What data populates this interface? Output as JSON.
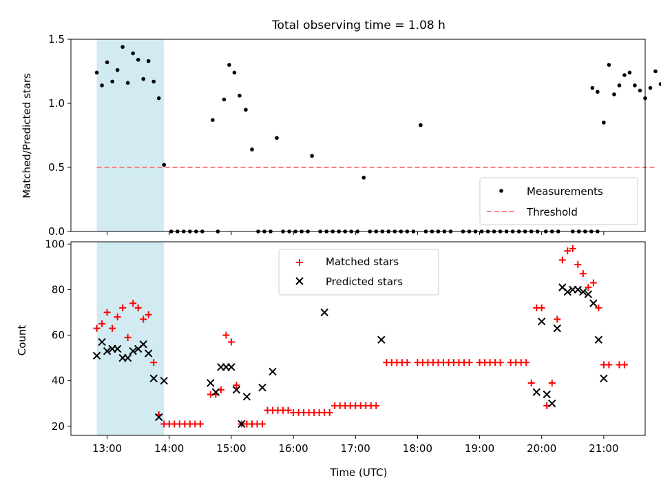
{
  "chart_data": [
    {
      "type": "scatter",
      "title": "Total observing time = 1.08 h",
      "ylabel": "Matched/Predicted stars",
      "xlabel": "",
      "xlim": [
        "12:25",
        "21:40"
      ],
      "ylim": [
        0,
        1.5
      ],
      "yticks": [
        "0.0",
        "0.5",
        "1.0",
        "1.5"
      ],
      "shaded_interval": [
        "12:50",
        "13:55"
      ],
      "shaded_color": "#add8e6",
      "threshold": 0.5,
      "legend_position": "lower right",
      "legend": [
        {
          "label": "Measurements",
          "marker": "dot",
          "color": "#000000"
        },
        {
          "label": "Threshold",
          "marker": "dashed-line",
          "color": "#ff7f7f"
        }
      ],
      "series": [
        {
          "name": "Measurements",
          "color": "#000000",
          "points": [
            [
              "12:50",
              1.24
            ],
            [
              "12:55",
              1.14
            ],
            [
              "13:00",
              1.32
            ],
            [
              "13:05",
              1.17
            ],
            [
              "13:10",
              1.26
            ],
            [
              "13:15",
              1.44
            ],
            [
              "13:20",
              1.16
            ],
            [
              "13:25",
              1.39
            ],
            [
              "13:30",
              1.34
            ],
            [
              "13:35",
              1.19
            ],
            [
              "13:40",
              1.33
            ],
            [
              "13:45",
              1.17
            ],
            [
              "13:50",
              1.04
            ],
            [
              "13:55",
              0.52
            ],
            [
              "14:02",
              0
            ],
            [
              "14:08",
              0
            ],
            [
              "14:14",
              0
            ],
            [
              "14:20",
              0
            ],
            [
              "14:26",
              0
            ],
            [
              "14:32",
              0
            ],
            [
              "14:42",
              0.87
            ],
            [
              "14:47",
              0
            ],
            [
              "14:53",
              1.03
            ],
            [
              "14:58",
              1.3
            ],
            [
              "15:03",
              1.24
            ],
            [
              "15:08",
              1.06
            ],
            [
              "15:14",
              0.95
            ],
            [
              "15:20",
              0.64
            ],
            [
              "15:26",
              0
            ],
            [
              "15:32",
              0
            ],
            [
              "15:38",
              0
            ],
            [
              "15:44",
              0.73
            ],
            [
              "15:50",
              0
            ],
            [
              "15:56",
              0
            ],
            [
              "16:02",
              0
            ],
            [
              "16:08",
              0
            ],
            [
              "16:14",
              0
            ],
            [
              "16:18",
              0.59
            ],
            [
              "16:26",
              0
            ],
            [
              "16:32",
              0
            ],
            [
              "16:38",
              0
            ],
            [
              "16:44",
              0
            ],
            [
              "16:50",
              0
            ],
            [
              "16:56",
              0
            ],
            [
              "17:02",
              0
            ],
            [
              "17:08",
              0.42
            ],
            [
              "17:14",
              0
            ],
            [
              "17:20",
              0
            ],
            [
              "17:26",
              0
            ],
            [
              "17:32",
              0
            ],
            [
              "17:38",
              0
            ],
            [
              "17:44",
              0
            ],
            [
              "17:50",
              0
            ],
            [
              "17:56",
              0
            ],
            [
              "18:03",
              0.83
            ],
            [
              "18:08",
              0
            ],
            [
              "18:14",
              0
            ],
            [
              "18:20",
              0
            ],
            [
              "18:26",
              0
            ],
            [
              "18:32",
              0
            ],
            [
              "18:44",
              0
            ],
            [
              "18:50",
              0
            ],
            [
              "18:56",
              0
            ],
            [
              "19:02",
              0
            ],
            [
              "19:08",
              0
            ],
            [
              "19:14",
              0
            ],
            [
              "19:20",
              0
            ],
            [
              "19:26",
              0
            ],
            [
              "19:32",
              0
            ],
            [
              "19:38",
              0
            ],
            [
              "19:44",
              0
            ],
            [
              "19:50",
              0
            ],
            [
              "19:56",
              0
            ],
            [
              "20:04",
              0
            ],
            [
              "20:10",
              0
            ],
            [
              "20:16",
              0
            ],
            [
              "20:30",
              0
            ],
            [
              "20:36",
              0
            ],
            [
              "20:42",
              0
            ],
            [
              "20:48",
              0
            ],
            [
              "20:54",
              0
            ],
            [
              "20:49",
              1.12
            ],
            [
              "20:54",
              1.09
            ],
            [
              "21:00",
              0.85
            ],
            [
              "21:05",
              1.3
            ],
            [
              "21:10",
              1.07
            ],
            [
              "21:15",
              1.14
            ],
            [
              "21:20",
              1.22
            ],
            [
              "21:25",
              1.24
            ],
            [
              "21:30",
              1.14
            ],
            [
              "21:35",
              1.1
            ],
            [
              "21:40",
              1.04
            ],
            [
              "21:45",
              1.12
            ],
            [
              "21:50",
              1.25
            ],
            [
              "21:55",
              1.15
            ]
          ]
        }
      ]
    },
    {
      "type": "scatter",
      "title": "",
      "ylabel": "Count",
      "xlabel": "Time (UTC)",
      "xlim": [
        "12:25",
        "21:40"
      ],
      "ylim": [
        16,
        101
      ],
      "yticks": [
        "20",
        "40",
        "60",
        "80",
        "100"
      ],
      "xticks": [
        "13:00",
        "14:00",
        "15:00",
        "16:00",
        "17:00",
        "18:00",
        "19:00",
        "20:00",
        "21:00"
      ],
      "shaded_interval": [
        "12:50",
        "13:55"
      ],
      "shaded_color": "#add8e6",
      "legend_position": "upper center",
      "legend": [
        {
          "label": "Matched stars",
          "marker": "plus",
          "color": "#ff0000"
        },
        {
          "label": "Predicted stars",
          "marker": "x",
          "color": "#000000"
        }
      ],
      "series": [
        {
          "name": "Matched stars",
          "color": "#ff0000",
          "marker": "plus",
          "points": [
            [
              "12:50",
              63
            ],
            [
              "12:55",
              65
            ],
            [
              "13:00",
              70
            ],
            [
              "13:05",
              63
            ],
            [
              "13:10",
              68
            ],
            [
              "13:15",
              72
            ],
            [
              "13:20",
              59
            ],
            [
              "13:25",
              74
            ],
            [
              "13:30",
              72
            ],
            [
              "13:35",
              67
            ],
            [
              "13:40",
              69
            ],
            [
              "13:45",
              48
            ],
            [
              "13:50",
              25
            ],
            [
              "13:55",
              21
            ],
            [
              "14:00",
              21
            ],
            [
              "14:05",
              21
            ],
            [
              "14:10",
              21
            ],
            [
              "14:15",
              21
            ],
            [
              "14:20",
              21
            ],
            [
              "14:25",
              21
            ],
            [
              "14:30",
              21
            ],
            [
              "14:40",
              34
            ],
            [
              "14:45",
              34
            ],
            [
              "14:50",
              36
            ],
            [
              "14:55",
              60
            ],
            [
              "15:00",
              57
            ],
            [
              "15:05",
              38
            ],
            [
              "15:10",
              21
            ],
            [
              "15:15",
              21
            ],
            [
              "15:20",
              21
            ],
            [
              "15:25",
              21
            ],
            [
              "15:30",
              21
            ],
            [
              "15:35",
              27
            ],
            [
              "15:40",
              27
            ],
            [
              "15:45",
              27
            ],
            [
              "15:50",
              27
            ],
            [
              "15:55",
              27
            ],
            [
              "16:00",
              26
            ],
            [
              "16:05",
              26
            ],
            [
              "16:10",
              26
            ],
            [
              "16:15",
              26
            ],
            [
              "16:20",
              26
            ],
            [
              "16:25",
              26
            ],
            [
              "16:30",
              26
            ],
            [
              "16:35",
              26
            ],
            [
              "16:40",
              29
            ],
            [
              "16:45",
              29
            ],
            [
              "16:50",
              29
            ],
            [
              "16:55",
              29
            ],
            [
              "17:00",
              29
            ],
            [
              "17:05",
              29
            ],
            [
              "17:10",
              29
            ],
            [
              "17:15",
              29
            ],
            [
              "17:20",
              29
            ],
            [
              "17:30",
              48
            ],
            [
              "17:35",
              48
            ],
            [
              "17:40",
              48
            ],
            [
              "17:45",
              48
            ],
            [
              "17:50",
              48
            ],
            [
              "18:00",
              48
            ],
            [
              "18:05",
              48
            ],
            [
              "18:10",
              48
            ],
            [
              "18:15",
              48
            ],
            [
              "18:20",
              48
            ],
            [
              "18:25",
              48
            ],
            [
              "18:30",
              48
            ],
            [
              "18:35",
              48
            ],
            [
              "18:40",
              48
            ],
            [
              "18:45",
              48
            ],
            [
              "18:50",
              48
            ],
            [
              "19:00",
              48
            ],
            [
              "19:05",
              48
            ],
            [
              "19:10",
              48
            ],
            [
              "19:15",
              48
            ],
            [
              "19:20",
              48
            ],
            [
              "19:30",
              48
            ],
            [
              "19:35",
              48
            ],
            [
              "19:40",
              48
            ],
            [
              "19:45",
              48
            ],
            [
              "19:50",
              39
            ],
            [
              "19:55",
              72
            ],
            [
              "20:00",
              72
            ],
            [
              "20:05",
              29
            ],
            [
              "20:10",
              39
            ],
            [
              "20:15",
              67
            ],
            [
              "20:20",
              93
            ],
            [
              "20:25",
              97
            ],
            [
              "20:30",
              98
            ],
            [
              "20:35",
              91
            ],
            [
              "20:40",
              87
            ],
            [
              "20:45",
              81
            ],
            [
              "20:50",
              83
            ],
            [
              "20:55",
              72
            ],
            [
              "21:00",
              47
            ],
            [
              "21:05",
              47
            ],
            [
              "21:15",
              47
            ],
            [
              "21:20",
              47
            ]
          ]
        },
        {
          "name": "Predicted stars",
          "color": "#000000",
          "marker": "x",
          "points": [
            [
              "12:50",
              51
            ],
            [
              "12:55",
              57
            ],
            [
              "13:00",
              53
            ],
            [
              "13:05",
              54
            ],
            [
              "13:10",
              54
            ],
            [
              "13:15",
              50
            ],
            [
              "13:20",
              50
            ],
            [
              "13:25",
              53
            ],
            [
              "13:30",
              54
            ],
            [
              "13:35",
              56
            ],
            [
              "13:40",
              52
            ],
            [
              "13:45",
              41
            ],
            [
              "13:50",
              24
            ],
            [
              "13:55",
              40
            ],
            [
              "14:40",
              39
            ],
            [
              "14:45",
              35
            ],
            [
              "14:50",
              46
            ],
            [
              "14:55",
              46
            ],
            [
              "15:00",
              46
            ],
            [
              "15:05",
              36
            ],
            [
              "15:10",
              21
            ],
            [
              "15:15",
              33
            ],
            [
              "15:30",
              37
            ],
            [
              "15:40",
              44
            ],
            [
              "16:30",
              70
            ],
            [
              "17:25",
              58
            ],
            [
              "19:55",
              35
            ],
            [
              "20:00",
              66
            ],
            [
              "20:05",
              34
            ],
            [
              "20:10",
              30
            ],
            [
              "20:15",
              63
            ],
            [
              "20:20",
              81
            ],
            [
              "20:25",
              79
            ],
            [
              "20:30",
              80
            ],
            [
              "20:35",
              80
            ],
            [
              "20:40",
              79
            ],
            [
              "20:45",
              78
            ],
            [
              "20:50",
              74
            ],
            [
              "20:55",
              58
            ],
            [
              "21:00",
              41
            ]
          ]
        }
      ]
    }
  ]
}
